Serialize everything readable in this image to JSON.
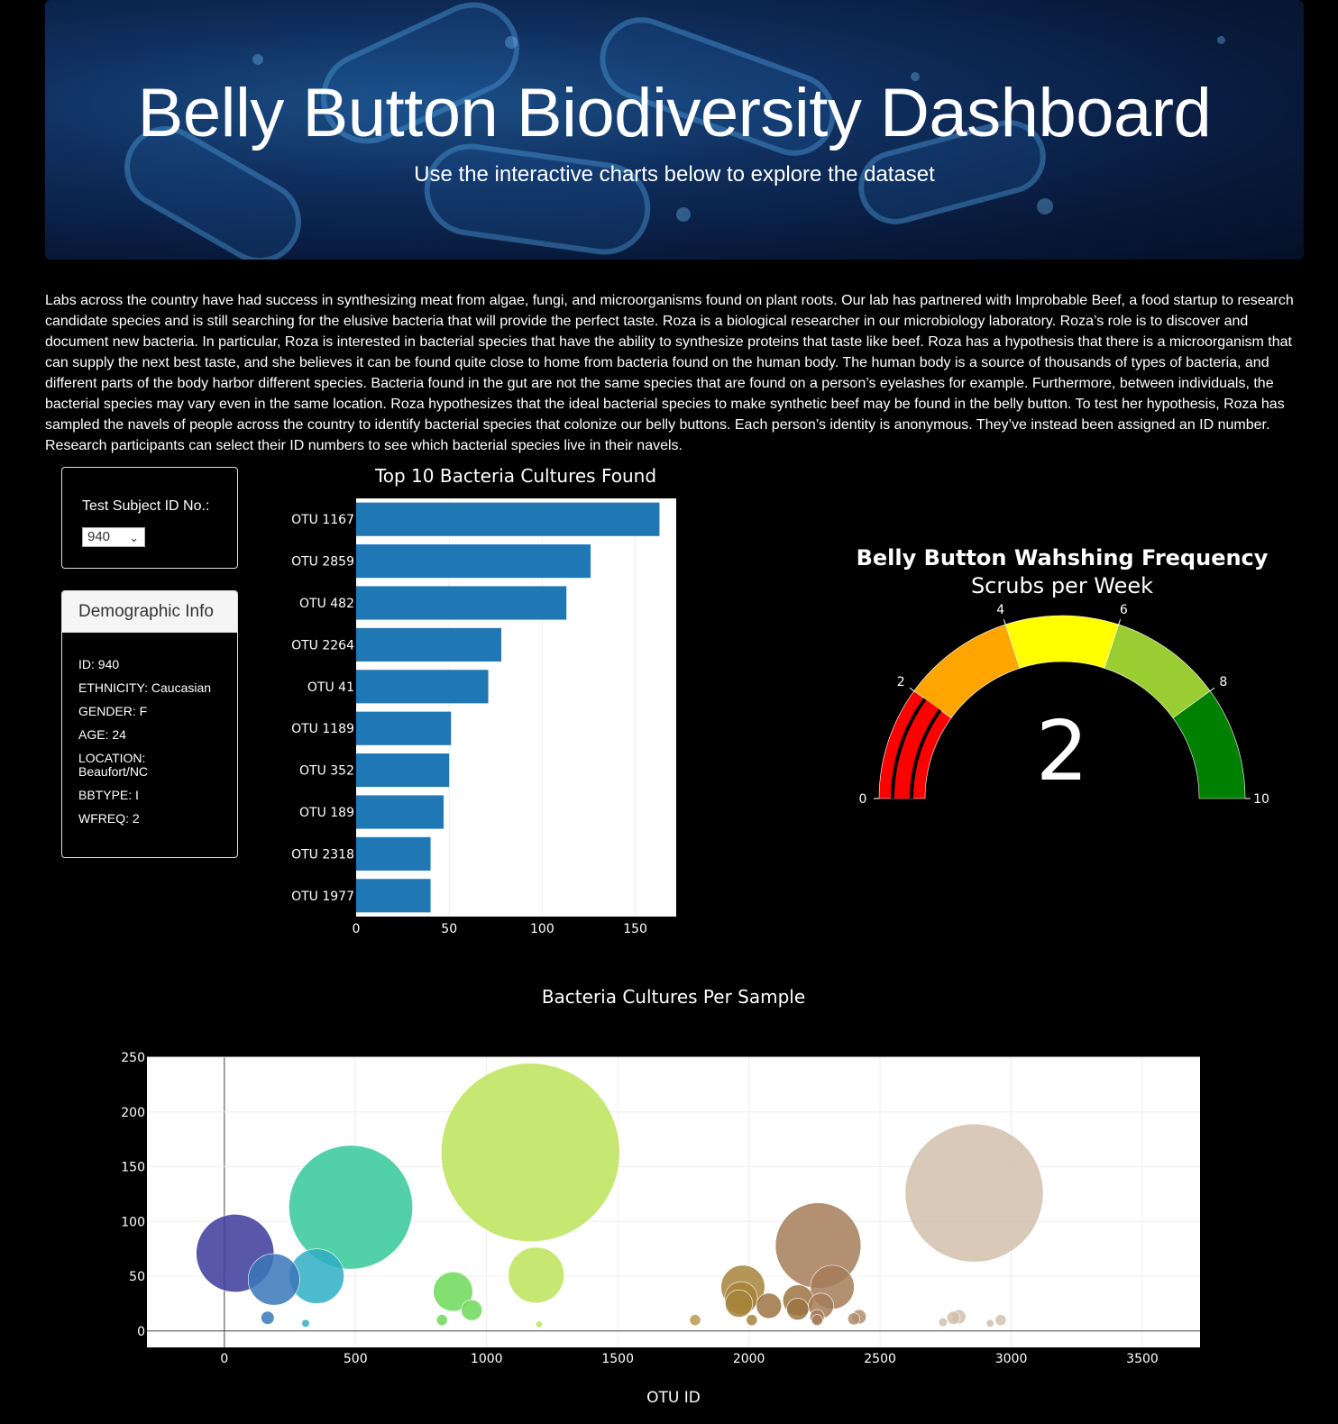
{
  "header": {
    "title": "Belly Button Biodiversity Dashboard",
    "subtitle": "Use the interactive charts below to explore the dataset"
  },
  "intro": "Labs across the country have had success in synthesizing meat from algae, fungi, and microorganisms found on plant roots. Our lab has partnered with Improbable Beef, a food startup to research candidate species and is still searching for the elusive bacteria that will provide the perfect taste. Roza is a biological researcher in our microbiology laboratory. Roza’s role is to discover and document new bacteria. In particular, Roza is interested in bacterial species that have the ability to synthesize proteins that taste like beef. Roza has a hypothesis that there is a microorganism that can supply the next best taste, and she believes it can be found quite close to home from bacteria found on the human body. The human body is a source of thousands of types of bacteria, and different parts of the body harbor different species. Bacteria found in the gut are not the same species that are found on a person’s eyelashes for example. Furthermore, between individuals, the bacterial species may vary even in the same location. Roza hypothesizes that the ideal bacterial species to make synthetic beef may be found in the belly button. To test her hypothesis, Roza has sampled the navels of people across the country to identify bacterial species that colonize our belly buttons. Each person’s identity is anonymous. They’ve instead been assigned an ID number. Research participants can select their ID numbers to see which bacterial species live in their navels.",
  "selector": {
    "label": "Test Subject ID No.:",
    "value": "940"
  },
  "demographic": {
    "title": "Demographic Info",
    "rows": [
      "ID: 940",
      "ETHNICITY: Caucasian",
      "GENDER: F",
      "AGE: 24",
      "LOCATION:",
      "Beaufort/NC",
      "BBTYPE: I",
      "WFREQ: 2"
    ]
  },
  "chart_data": [
    {
      "type": "bar",
      "orientation": "horizontal",
      "title": "Top 10 Bacteria Cultures Found",
      "categories": [
        "OTU 1167",
        "OTU 2859",
        "OTU 482",
        "OTU 2264",
        "OTU 41",
        "OTU 1189",
        "OTU 352",
        "OTU 189",
        "OTU 2318",
        "OTU 1977"
      ],
      "values": [
        163,
        126,
        113,
        78,
        71,
        51,
        50,
        47,
        40,
        40
      ],
      "xlim": [
        0,
        172
      ],
      "xticks": [
        0,
        50,
        100,
        150
      ],
      "color": "#1f77b4"
    },
    {
      "type": "gauge",
      "title": "Belly Button Wahshing Frequency",
      "subtitle": "Scrubs per Week",
      "value": 2,
      "range": [
        0,
        10
      ],
      "ticks": [
        0,
        2,
        4,
        6,
        8,
        10
      ],
      "steps": [
        {
          "range": [
            0,
            2
          ],
          "color": "#ff0000"
        },
        {
          "range": [
            2,
            4
          ],
          "color": "#ffa500"
        },
        {
          "range": [
            4,
            6
          ],
          "color": "#ffff00"
        },
        {
          "range": [
            6,
            8
          ],
          "color": "#9acd32"
        },
        {
          "range": [
            8,
            10
          ],
          "color": "#008000"
        }
      ]
    },
    {
      "type": "scatter",
      "title": "Bacteria Cultures Per Sample",
      "xlabel": "OTU ID",
      "xlim": [
        -295,
        3720
      ],
      "ylim": [
        -15,
        250
      ],
      "xticks": [
        0,
        500,
        1000,
        1500,
        2000,
        2500,
        3000,
        3500
      ],
      "yticks": [
        0,
        50,
        100,
        150,
        200,
        250
      ],
      "points": [
        {
          "x": 41,
          "y": 71,
          "color": "#3b3a9a"
        },
        {
          "x": 189,
          "y": 47,
          "color": "#3a77b8"
        },
        {
          "x": 165,
          "y": 12,
          "color": "#3a77b8"
        },
        {
          "x": 352,
          "y": 50,
          "color": "#2eaec4"
        },
        {
          "x": 310,
          "y": 7,
          "color": "#2eaec4"
        },
        {
          "x": 482,
          "y": 113,
          "color": "#34c99a"
        },
        {
          "x": 872,
          "y": 36,
          "color": "#6fd95a"
        },
        {
          "x": 943,
          "y": 19,
          "color": "#6fd95a"
        },
        {
          "x": 830,
          "y": 10,
          "color": "#6fd95a"
        },
        {
          "x": 1167,
          "y": 163,
          "color": "#bde35a"
        },
        {
          "x": 1189,
          "y": 51,
          "color": "#bde35a"
        },
        {
          "x": 1200,
          "y": 6,
          "color": "#bde35a"
        },
        {
          "x": 1795,
          "y": 10,
          "color": "#b59a50"
        },
        {
          "x": 1977,
          "y": 40,
          "color": "#a6843a"
        },
        {
          "x": 1970,
          "y": 30,
          "color": "#a6843a"
        },
        {
          "x": 1962,
          "y": 25,
          "color": "#a6843a"
        },
        {
          "x": 2011,
          "y": 10,
          "color": "#a6843a"
        },
        {
          "x": 2076,
          "y": 23,
          "color": "#9c7342"
        },
        {
          "x": 2188,
          "y": 28,
          "color": "#9c7342"
        },
        {
          "x": 2186,
          "y": 20,
          "color": "#9c7342"
        },
        {
          "x": 2264,
          "y": 78,
          "color": "#a47c58"
        },
        {
          "x": 2318,
          "y": 40,
          "color": "#a47c58"
        },
        {
          "x": 2275,
          "y": 23,
          "color": "#a47c58"
        },
        {
          "x": 2260,
          "y": 13,
          "color": "#a47c58"
        },
        {
          "x": 2260,
          "y": 10,
          "color": "#a47c58"
        },
        {
          "x": 2420,
          "y": 13,
          "color": "#b08d70"
        },
        {
          "x": 2400,
          "y": 11,
          "color": "#b08d70"
        },
        {
          "x": 2859,
          "y": 126,
          "color": "#d1bfad"
        },
        {
          "x": 2780,
          "y": 12,
          "color": "#d1bfad"
        },
        {
          "x": 2800,
          "y": 13,
          "color": "#d1bfad"
        },
        {
          "x": 2740,
          "y": 8,
          "color": "#d1bfad"
        },
        {
          "x": 2960,
          "y": 10,
          "color": "#d1bfad"
        },
        {
          "x": 2920,
          "y": 7,
          "color": "#d1bfad"
        }
      ]
    }
  ]
}
